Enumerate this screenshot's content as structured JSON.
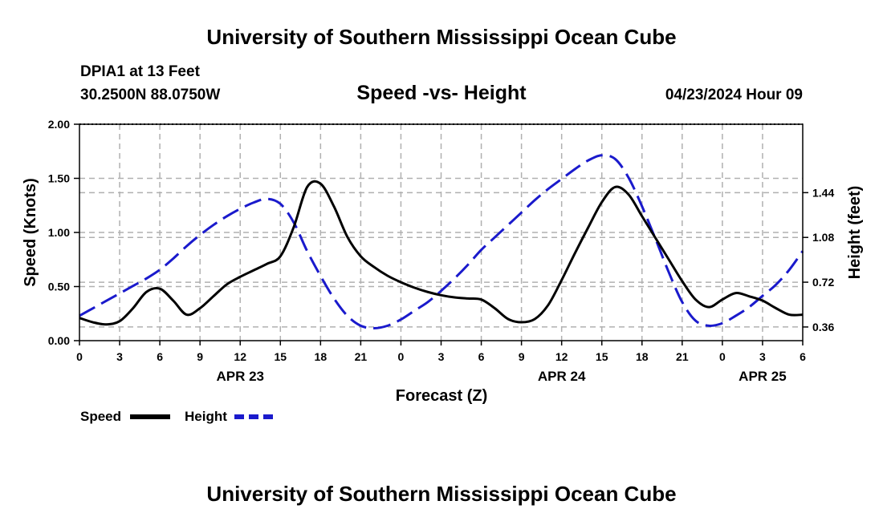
{
  "header": {
    "title": "University of Southern Mississippi Ocean Cube",
    "station": "DPIA1 at 13 Feet",
    "coords": "30.2500N  88.0750W",
    "chart_title": "Speed -vs- Height",
    "datetime": "04/23/2024 Hour 09"
  },
  "footer": {
    "title": "University of Southern Mississippi Ocean Cube"
  },
  "legend": {
    "speed_label": "Speed",
    "height_label": "Height"
  },
  "colors": {
    "speed": "#000000",
    "height": "#1a1acc",
    "grid": "#b0b0b0"
  },
  "chart_data": {
    "type": "line",
    "title": "Speed -vs- Height",
    "xlabel": "Forecast (Z)",
    "ylabel": "Speed (Knots)",
    "y2label": "Height (feet)",
    "xlim": [
      0,
      54
    ],
    "ylim": [
      0,
      2.0
    ],
    "y2lim": [
      0.25,
      1.99
    ],
    "x_ticks": [
      0,
      3,
      6,
      9,
      12,
      15,
      18,
      21,
      24,
      27,
      30,
      33,
      36,
      39,
      42,
      45,
      48,
      51,
      54
    ],
    "x_tick_labels": [
      "0",
      "3",
      "6",
      "9",
      "12",
      "15",
      "18",
      "21",
      "0",
      "3",
      "6",
      "9",
      "12",
      "15",
      "18",
      "21",
      "0",
      "3",
      "6"
    ],
    "y_ticks": [
      0.0,
      0.5,
      1.0,
      1.5,
      2.0
    ],
    "y_tick_labels": [
      "0.00",
      "0.50",
      "1.00",
      "1.50",
      "2.00"
    ],
    "y2_ticks": [
      0.36,
      0.72,
      1.08,
      1.44
    ],
    "y2_tick_labels": [
      "0.36",
      "0.72",
      "1.08",
      "1.44"
    ],
    "date_labels": [
      {
        "x": 12,
        "label": "APR 23"
      },
      {
        "x": 36,
        "label": "APR 24"
      },
      {
        "x": 51,
        "label": "APR 25"
      }
    ],
    "series": [
      {
        "name": "Speed",
        "axis": "left",
        "style": "solid",
        "x": [
          0,
          1,
          2,
          3,
          4,
          5,
          6,
          7,
          8,
          9,
          10,
          11,
          12,
          13,
          14,
          15,
          16,
          17,
          18,
          19,
          20,
          21,
          22,
          23,
          24,
          25,
          26,
          27,
          28,
          29,
          30,
          31,
          32,
          33,
          34,
          35,
          36,
          37,
          38,
          39,
          40,
          41,
          42,
          43,
          44,
          45,
          46,
          47,
          48,
          49,
          50,
          51,
          52,
          53,
          54
        ],
        "y": [
          0.21,
          0.17,
          0.15,
          0.18,
          0.3,
          0.45,
          0.48,
          0.37,
          0.24,
          0.3,
          0.41,
          0.52,
          0.59,
          0.65,
          0.71,
          0.78,
          1.05,
          1.42,
          1.45,
          1.24,
          0.96,
          0.78,
          0.68,
          0.6,
          0.54,
          0.49,
          0.45,
          0.42,
          0.4,
          0.39,
          0.38,
          0.3,
          0.2,
          0.17,
          0.2,
          0.33,
          0.56,
          0.81,
          1.05,
          1.28,
          1.42,
          1.35,
          1.15,
          0.95,
          0.75,
          0.55,
          0.38,
          0.31,
          0.38,
          0.44,
          0.41,
          0.37,
          0.3,
          0.24,
          0.24
        ]
      },
      {
        "name": "Height",
        "axis": "right",
        "style": "dashed",
        "x": [
          0,
          1,
          2,
          3,
          4,
          5,
          6,
          7,
          8,
          9,
          10,
          11,
          12,
          13,
          14,
          15,
          16,
          17,
          18,
          19,
          20,
          21,
          22,
          23,
          24,
          25,
          26,
          27,
          28,
          29,
          30,
          31,
          32,
          33,
          34,
          35,
          36,
          37,
          38,
          39,
          40,
          41,
          42,
          43,
          44,
          45,
          46,
          47,
          48,
          49,
          50,
          51,
          52,
          53,
          54
        ],
        "y": [
          0.45,
          0.51,
          0.57,
          0.63,
          0.69,
          0.75,
          0.82,
          0.91,
          1.01,
          1.1,
          1.18,
          1.25,
          1.31,
          1.36,
          1.39,
          1.35,
          1.2,
          0.97,
          0.77,
          0.59,
          0.45,
          0.37,
          0.35,
          0.37,
          0.42,
          0.49,
          0.56,
          0.65,
          0.75,
          0.86,
          0.98,
          1.08,
          1.18,
          1.28,
          1.38,
          1.47,
          1.55,
          1.63,
          1.7,
          1.74,
          1.71,
          1.56,
          1.33,
          1.07,
          0.8,
          0.56,
          0.41,
          0.37,
          0.39,
          0.45,
          0.52,
          0.61,
          0.7,
          0.82,
          0.97
        ]
      }
    ]
  }
}
